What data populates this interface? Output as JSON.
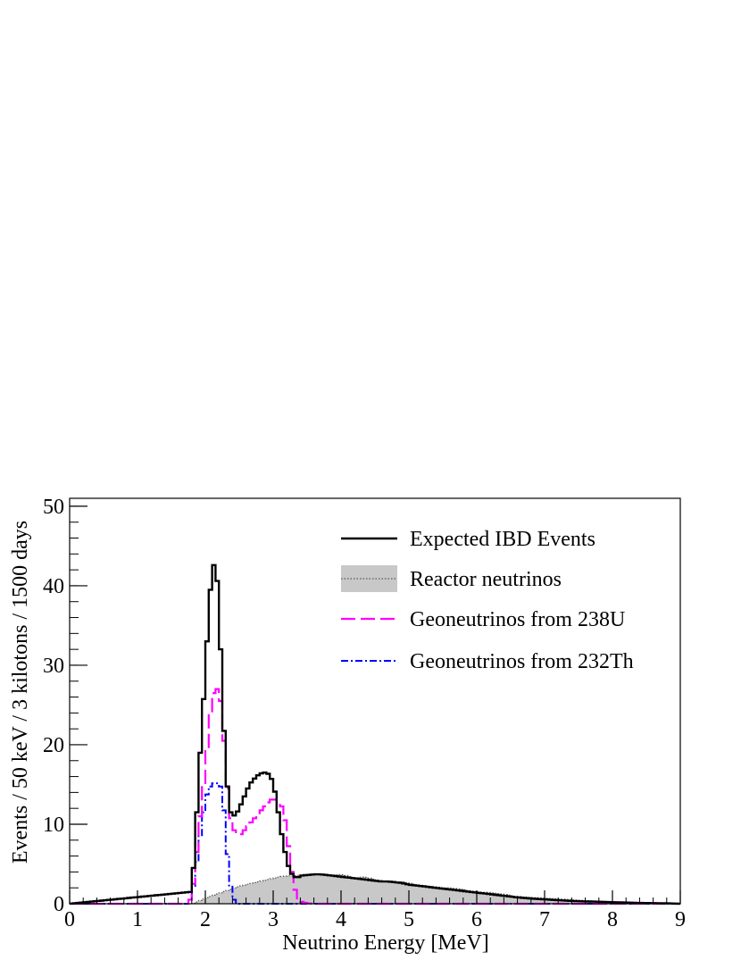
{
  "colors": {
    "total": "#000000",
    "reactor_fill": "#c8c8c8",
    "reactor_line": "#555555",
    "u238": "#ff00ff",
    "th232": "#0000ff"
  },
  "chart_data": {
    "type": "line",
    "xlabel": "Neutrino Energy [MeV]",
    "ylabel": "Events / 50 keV / 3 kilotons / 1500 days",
    "xlim": [
      0,
      9
    ],
    "ylim": [
      0,
      51
    ],
    "x_ticks": [
      "0",
      "1",
      "2",
      "3",
      "4",
      "5",
      "6",
      "7",
      "8",
      "9"
    ],
    "y_ticks": [
      "0",
      "10",
      "20",
      "30",
      "40",
      "50"
    ],
    "grid": false,
    "legend_position": "top-right",
    "bin_width": 0.05,
    "series": [
      {
        "name": "Expected IBD Events",
        "style": "solid-black",
        "x": [
          0,
          1.8,
          1.85,
          1.9,
          1.95,
          2.0,
          2.05,
          2.1,
          2.15,
          2.2,
          2.25,
          2.3,
          2.35,
          2.4,
          2.45,
          2.5,
          2.55,
          2.6,
          2.65,
          2.7,
          2.75,
          2.8,
          2.85,
          2.9,
          2.95,
          3.0,
          3.05,
          3.1,
          3.15,
          3.2,
          3.25,
          3.3,
          3.35,
          3.4,
          3.45,
          3.5,
          3.6,
          3.7,
          3.8,
          3.9,
          4.0,
          4.1,
          4.2,
          4.3,
          4.4,
          4.5,
          4.6,
          4.7,
          4.8,
          4.9,
          5.0,
          5.2,
          5.4,
          5.6,
          5.8,
          6.0,
          6.2,
          6.4,
          6.6,
          6.8,
          7.0,
          7.2,
          7.4,
          7.6,
          7.8,
          8.0,
          8.2,
          8.4,
          8.6,
          8.8,
          9.0
        ],
        "y": [
          0,
          1.5,
          7.5,
          15.5,
          22.5,
          29,
          37,
          42,
          43.2,
          38,
          26,
          17.5,
          12,
          11,
          11.2,
          12,
          13,
          14,
          15,
          15.5,
          16,
          16.3,
          16.5,
          16.5,
          16.2,
          15.2,
          13,
          10,
          7.5,
          5.5,
          4,
          3.5,
          3.2,
          3.5,
          3.6,
          3.6,
          3.7,
          3.7,
          3.6,
          3.5,
          3.4,
          3.3,
          3.2,
          3.1,
          3.0,
          2.9,
          2.8,
          2.8,
          2.7,
          2.6,
          2.4,
          2.2,
          2.0,
          1.8,
          1.6,
          1.4,
          1.2,
          1.0,
          0.8,
          0.65,
          0.55,
          0.45,
          0.35,
          0.3,
          0.25,
          0.2,
          0.15,
          0.1,
          0.08,
          0.05,
          0
        ]
      },
      {
        "name": "Reactor neutrinos",
        "style": "filled-gray-dotted",
        "x": [
          0,
          1.8,
          1.9,
          2.0,
          2.1,
          2.2,
          2.3,
          2.4,
          2.5,
          2.6,
          2.7,
          2.8,
          2.9,
          3.0,
          3.1,
          3.2,
          3.3,
          3.4,
          3.5,
          3.6,
          3.7,
          3.8,
          3.9,
          4.0,
          4.1,
          4.2,
          4.3,
          4.4,
          4.5,
          4.6,
          4.7,
          4.8,
          4.9,
          5.0,
          5.1,
          5.2,
          5.3,
          5.4,
          5.5,
          5.6,
          5.7,
          5.8,
          5.9,
          6.0,
          6.2,
          6.4,
          6.6,
          6.8,
          7.0,
          7.2,
          7.4,
          7.6,
          7.8,
          8.0,
          8.2,
          8.4,
          8.6,
          8.8,
          9.0
        ],
        "y": [
          0,
          0,
          0.3,
          0.7,
          1.0,
          1.3,
          1.6,
          1.9,
          2.2,
          2.4,
          2.6,
          2.8,
          3.0,
          3.2,
          3.4,
          3.5,
          3.5,
          3.6,
          3.6,
          3.7,
          3.7,
          3.6,
          3.6,
          3.7,
          3.5,
          3.2,
          3.4,
          3.3,
          3.0,
          2.9,
          2.7,
          2.7,
          2.8,
          2.6,
          2.4,
          2.3,
          2.2,
          2.1,
          2.0,
          2.0,
          1.9,
          1.8,
          1.6,
          1.5,
          1.4,
          1.2,
          0.9,
          0.8,
          0.7,
          0.6,
          0.5,
          0.4,
          0.3,
          0.25,
          0.2,
          0.15,
          0.1,
          0.05,
          0
        ]
      },
      {
        "name": "Geoneutrinos from 238U",
        "style": "dashed-magenta",
        "x": [
          0,
          1.75,
          1.8,
          1.85,
          1.9,
          1.95,
          2.0,
          2.05,
          2.1,
          2.15,
          2.2,
          2.25,
          2.3,
          2.35,
          2.4,
          2.45,
          2.5,
          2.6,
          2.7,
          2.8,
          2.9,
          2.95,
          3.0,
          3.05,
          3.1,
          3.15,
          3.2,
          3.25,
          3.3,
          3.35,
          3.4,
          3.5,
          3.6,
          9.0
        ],
        "y": [
          0,
          0,
          1,
          4,
          9,
          13,
          17,
          22,
          26,
          27,
          27,
          24,
          17,
          12,
          9.5,
          9,
          8.5,
          9.5,
          10.5,
          11.5,
          12.5,
          13,
          13.2,
          13,
          12.5,
          12,
          9,
          5.5,
          2.5,
          1,
          0.3,
          0.05,
          0,
          0
        ]
      },
      {
        "name": "Geoneutrinos from 232Th",
        "style": "dashdot-blue",
        "x": [
          0,
          1.75,
          1.8,
          1.85,
          1.9,
          1.95,
          2.0,
          2.05,
          2.1,
          2.15,
          2.2,
          2.25,
          2.3,
          2.35,
          2.4,
          2.45,
          2.5,
          9.0
        ],
        "y": [
          0,
          0,
          1.0,
          3.5,
          7.0,
          10,
          13,
          14.5,
          15,
          15.3,
          15,
          14.5,
          9,
          3.5,
          0.8,
          0.2,
          0,
          0
        ]
      }
    ]
  }
}
